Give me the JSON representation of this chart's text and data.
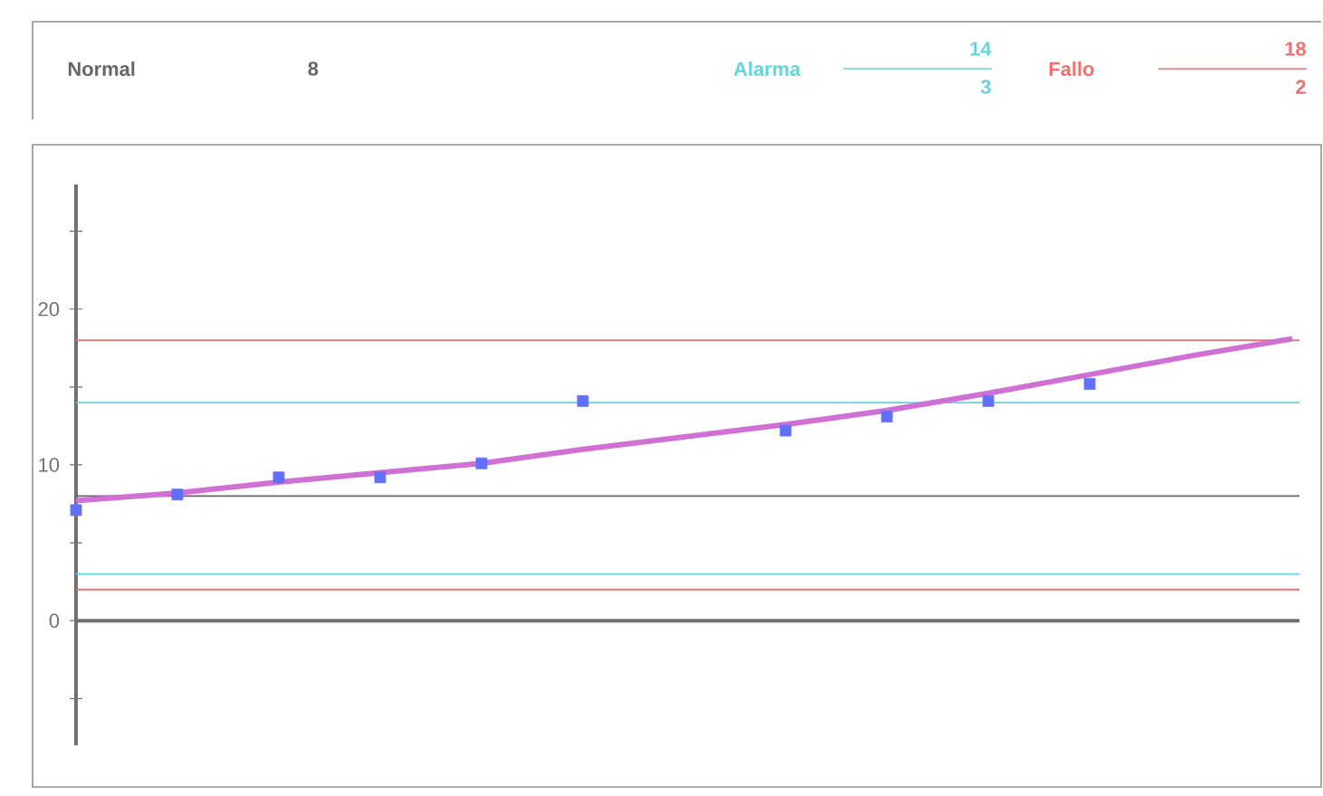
{
  "chart_data": {
    "type": "scatter",
    "categories": [
      null,
      null,
      null,
      null,
      null,
      null,
      null,
      null,
      null,
      null,
      null,
      null,
      null
    ],
    "series": [
      {
        "marker": "square",
        "color": "#6070f8",
        "values": [
          7.1,
          8.1,
          9.2,
          9.2,
          10.1,
          14.1,
          null,
          12.2,
          13.1,
          14.1,
          15.2,
          null,
          null
        ]
      },
      {
        "type": "line",
        "marker": "none",
        "color": "#d070d4",
        "values": [
          7.7,
          8.2,
          8.9,
          9.5,
          10.1,
          11.0,
          11.8,
          12.6,
          13.5,
          14.6,
          15.8,
          17.0,
          18.1
        ]
      }
    ],
    "ylim": [
      -8,
      28
    ],
    "yticks": [
      {
        "value": -5,
        "label": null
      },
      0,
      {
        "value": 5,
        "label": null
      },
      10,
      {
        "value": 15,
        "label": null
      },
      20,
      {
        "value": 25,
        "label": null
      }
    ],
    "ref_lines": [
      {
        "axis": "y",
        "value": 8,
        "label": "Normal",
        "color": "#666666"
      },
      {
        "axis": "y",
        "value": 14,
        "label": "Alarma",
        "color": "#66d4dc"
      },
      {
        "axis": "y",
        "value": 3,
        "color": "#66d4dc"
      },
      {
        "axis": "y",
        "value": 18,
        "label": "Fallo",
        "color": "#f07070"
      },
      {
        "axis": "y",
        "value": 2,
        "color": "#f07070"
      }
    ],
    "annotations": [
      "8",
      "14",
      "3",
      "18",
      "2"
    ]
  }
}
